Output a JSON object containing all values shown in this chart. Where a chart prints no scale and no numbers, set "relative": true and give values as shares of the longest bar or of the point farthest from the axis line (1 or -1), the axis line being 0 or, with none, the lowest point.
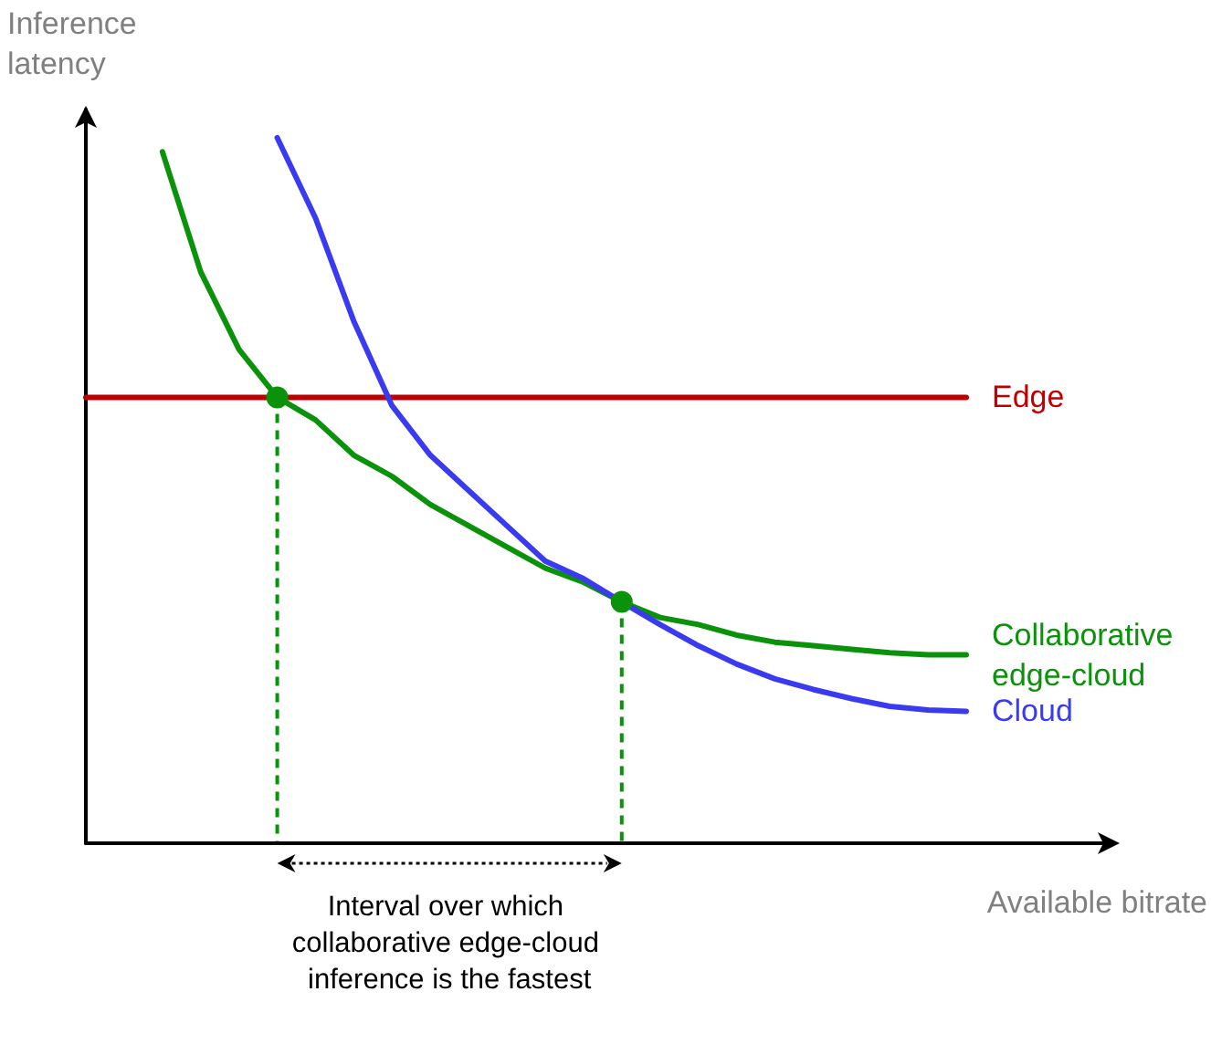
{
  "chart_data": {
    "type": "line",
    "relative": true,
    "ylabel": "Inference\nlatency",
    "xlabel": "Available bitrate",
    "categories": [
      null,
      null,
      null,
      null,
      null,
      null,
      null,
      null,
      null,
      null,
      null,
      null,
      null,
      null,
      null,
      null,
      null,
      null,
      null,
      null,
      null,
      null,
      null,
      null
    ],
    "series": [
      {
        "name": "Edge",
        "color": "#c00000",
        "values": [
          0.632,
          0.632,
          0.632,
          0.632,
          0.632,
          0.632,
          0.632,
          0.632,
          0.632,
          0.632,
          0.632,
          0.632,
          0.632,
          0.632,
          0.632,
          0.632,
          0.632,
          0.632,
          0.632,
          0.632,
          0.632,
          0.632,
          0.632,
          0.632
        ]
      },
      {
        "name": "Collaborative\nedge-cloud",
        "color": "#0a920a",
        "values": [
          null,
          null,
          0.98,
          0.81,
          0.7,
          0.632,
          0.6,
          0.55,
          0.52,
          0.48,
          0.45,
          0.42,
          0.39,
          0.37,
          0.342,
          0.32,
          0.31,
          0.295,
          0.285,
          0.28,
          0.275,
          0.27,
          0.267,
          0.267
        ]
      },
      {
        "name": "Cloud",
        "color": "#3a3af0",
        "values": [
          null,
          null,
          null,
          null,
          null,
          1.0,
          0.886,
          0.74,
          0.62,
          0.55,
          0.5,
          0.45,
          0.4,
          0.375,
          0.342,
          0.31,
          0.28,
          0.254,
          0.233,
          0.218,
          0.205,
          0.194,
          0.189,
          0.187
        ]
      }
    ],
    "marker": "none",
    "grid": false,
    "legend": false,
    "annotations": [
      "Interval over which collaborative edge-cloud inference is the fastest"
    ]
  }
}
